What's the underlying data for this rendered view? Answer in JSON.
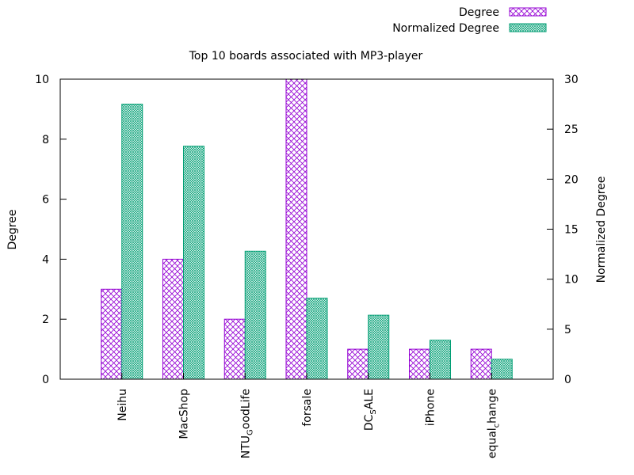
{
  "chart_data": {
    "type": "bar",
    "title": "Top 10 boards associated with MP3-player",
    "xlabel": "",
    "ylabel": "Degree",
    "y2label": "Normalized Degree",
    "categories": [
      "Neihu",
      "MacShop",
      "NTU_GoodLife",
      "forsale",
      "DC_SALE",
      "iPhone",
      "equal_change"
    ],
    "category_display": [
      {
        "main": "Neihu",
        "sub": "",
        "tail": ""
      },
      {
        "main": "MacShop",
        "sub": "",
        "tail": ""
      },
      {
        "main": "NTU",
        "sub": "G",
        "tail": "oodLife"
      },
      {
        "main": "forsale",
        "sub": "",
        "tail": ""
      },
      {
        "main": "DC",
        "sub": "S",
        "tail": "ALE"
      },
      {
        "main": "iPhone",
        "sub": "",
        "tail": ""
      },
      {
        "main": "equal",
        "sub": "c",
        "tail": "hange"
      }
    ],
    "series": [
      {
        "name": "Degree",
        "axis": "left",
        "color": "#9400D3",
        "pattern": "crosshatch",
        "values": [
          3,
          4,
          2,
          10,
          1,
          1,
          1
        ]
      },
      {
        "name": "Normalized Degree",
        "axis": "right",
        "color": "#009E73",
        "pattern": "dense",
        "values": [
          27.5,
          23.3,
          12.8,
          8.1,
          6.4,
          3.9,
          2.0
        ]
      }
    ],
    "ylim": [
      0,
      10
    ],
    "y2lim": [
      0,
      30
    ],
    "yticks": [
      "0",
      "2",
      "4",
      "6",
      "8",
      "10"
    ],
    "y2ticks": [
      "0",
      "5",
      "10",
      "15",
      "20",
      "25",
      "30"
    ],
    "legend_position": "top-right",
    "grid": false
  }
}
